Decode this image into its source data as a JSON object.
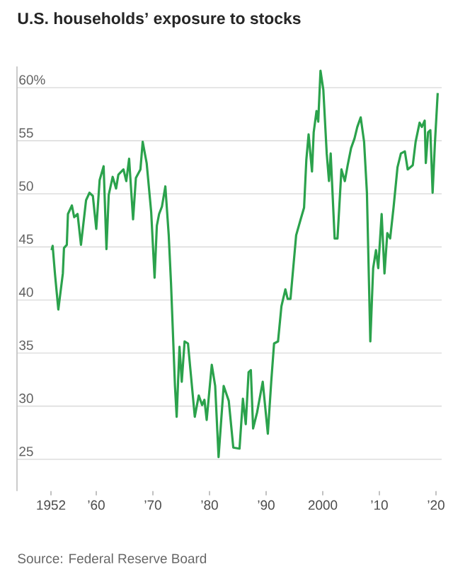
{
  "chart_data": {
    "type": "line",
    "title": "U.S. households’ exposure to stocks",
    "annotations": [
      "Source: Federal Reserve Board"
    ],
    "x": [
      1952.1,
      1952.3,
      1952.7,
      1953.3,
      1954.1,
      1954.3,
      1954.8,
      1955.0,
      1955.7,
      1956.1,
      1956.7,
      1957.3,
      1958.2,
      1958.8,
      1959.4,
      1960.0,
      1960.6,
      1961.3,
      1961.8,
      1962.2,
      1962.9,
      1963.5,
      1963.9,
      1964.8,
      1965.3,
      1965.8,
      1966.5,
      1967.0,
      1967.8,
      1968.2,
      1968.9,
      1969.7,
      1970.3,
      1970.7,
      1971.1,
      1971.6,
      1972.2,
      1972.8,
      1973.2,
      1973.9,
      1974.2,
      1974.7,
      1975.1,
      1975.6,
      1976.2,
      1976.6,
      1977.4,
      1978.1,
      1978.7,
      1979.1,
      1979.5,
      1980.4,
      1981.0,
      1981.6,
      1982.5,
      1983.4,
      1984.2,
      1985.3,
      1985.9,
      1986.4,
      1986.9,
      1987.3,
      1987.7,
      1988.4,
      1989.4,
      1990.3,
      1990.9,
      1991.4,
      1992.1,
      1992.7,
      1993.4,
      1993.8,
      1994.3,
      1995.3,
      1996.1,
      1996.7,
      1997.1,
      1997.5,
      1998.1,
      1998.4,
      1998.9,
      1999.2,
      1999.6,
      2000.1,
      2000.7,
      2001.1,
      2001.4,
      2002.1,
      2002.6,
      2003.3,
      2003.9,
      2004.4,
      2005.0,
      2005.6,
      2006.1,
      2006.7,
      2007.3,
      2007.8,
      2008.4,
      2008.9,
      2009.4,
      2009.8,
      2010.4,
      2010.9,
      2011.4,
      2011.9,
      2012.5,
      2013.2,
      2013.8,
      2014.5,
      2015.0,
      2015.9,
      2016.4,
      2017.1,
      2017.5,
      2018.0,
      2018.2,
      2018.6,
      2019.0,
      2019.4,
      2019.8,
      2020.3
    ],
    "values": [
      44.7,
      45.1,
      42.5,
      39.1,
      42.5,
      44.9,
      45.2,
      48.1,
      48.9,
      47.8,
      48.1,
      45.2,
      49.4,
      50.1,
      49.8,
      46.7,
      51.3,
      52.6,
      44.8,
      49.9,
      51.6,
      50.5,
      51.8,
      52.3,
      51.2,
      53.3,
      47.6,
      51.5,
      52.3,
      54.9,
      52.9,
      48.3,
      42.1,
      47.0,
      48.1,
      48.8,
      50.7,
      46.1,
      41.6,
      31.9,
      29.0,
      35.6,
      32.3,
      36.1,
      35.9,
      33.6,
      29.0,
      31.0,
      30.1,
      30.6,
      28.7,
      33.9,
      31.9,
      25.2,
      31.9,
      30.5,
      26.1,
      26.0,
      30.7,
      28.3,
      33.2,
      33.4,
      27.9,
      29.4,
      32.3,
      27.4,
      32.3,
      35.9,
      36.1,
      39.4,
      41.0,
      40.1,
      40.1,
      46.1,
      47.6,
      48.7,
      53.2,
      55.6,
      52.1,
      55.8,
      57.8,
      56.8,
      61.6,
      59.8,
      53.8,
      51.2,
      53.8,
      45.8,
      45.8,
      52.3,
      51.2,
      52.7,
      54.3,
      55.2,
      56.3,
      57.2,
      54.9,
      50.1,
      36.1,
      43.0,
      44.7,
      43.0,
      48.1,
      42.5,
      46.3,
      45.8,
      48.7,
      52.5,
      53.8,
      54.0,
      52.3,
      52.7,
      54.9,
      56.7,
      56.3,
      56.9,
      52.9,
      55.8,
      56.0,
      50.1,
      54.7,
      59.5
    ],
    "color": "#2ba24c",
    "line_style": "solid",
    "marker": "none",
    "grid": "y",
    "xlim": [
      1946,
      2021
    ],
    "ylim": [
      22,
      62
    ],
    "xticks": [
      {
        "value": 1952,
        "label": "1952"
      },
      {
        "value": 1960,
        "label": "’60"
      },
      {
        "value": 1970,
        "label": "’70"
      },
      {
        "value": 1980,
        "label": "’80"
      },
      {
        "value": 1990,
        "label": "’90"
      },
      {
        "value": 2000,
        "label": "2000"
      },
      {
        "value": 2010,
        "label": "’10"
      },
      {
        "value": 2020,
        "label": "’20"
      }
    ],
    "yticks": [
      25,
      30,
      35,
      40,
      45,
      50,
      55,
      {
        "value": 60,
        "label": "60%"
      }
    ]
  }
}
